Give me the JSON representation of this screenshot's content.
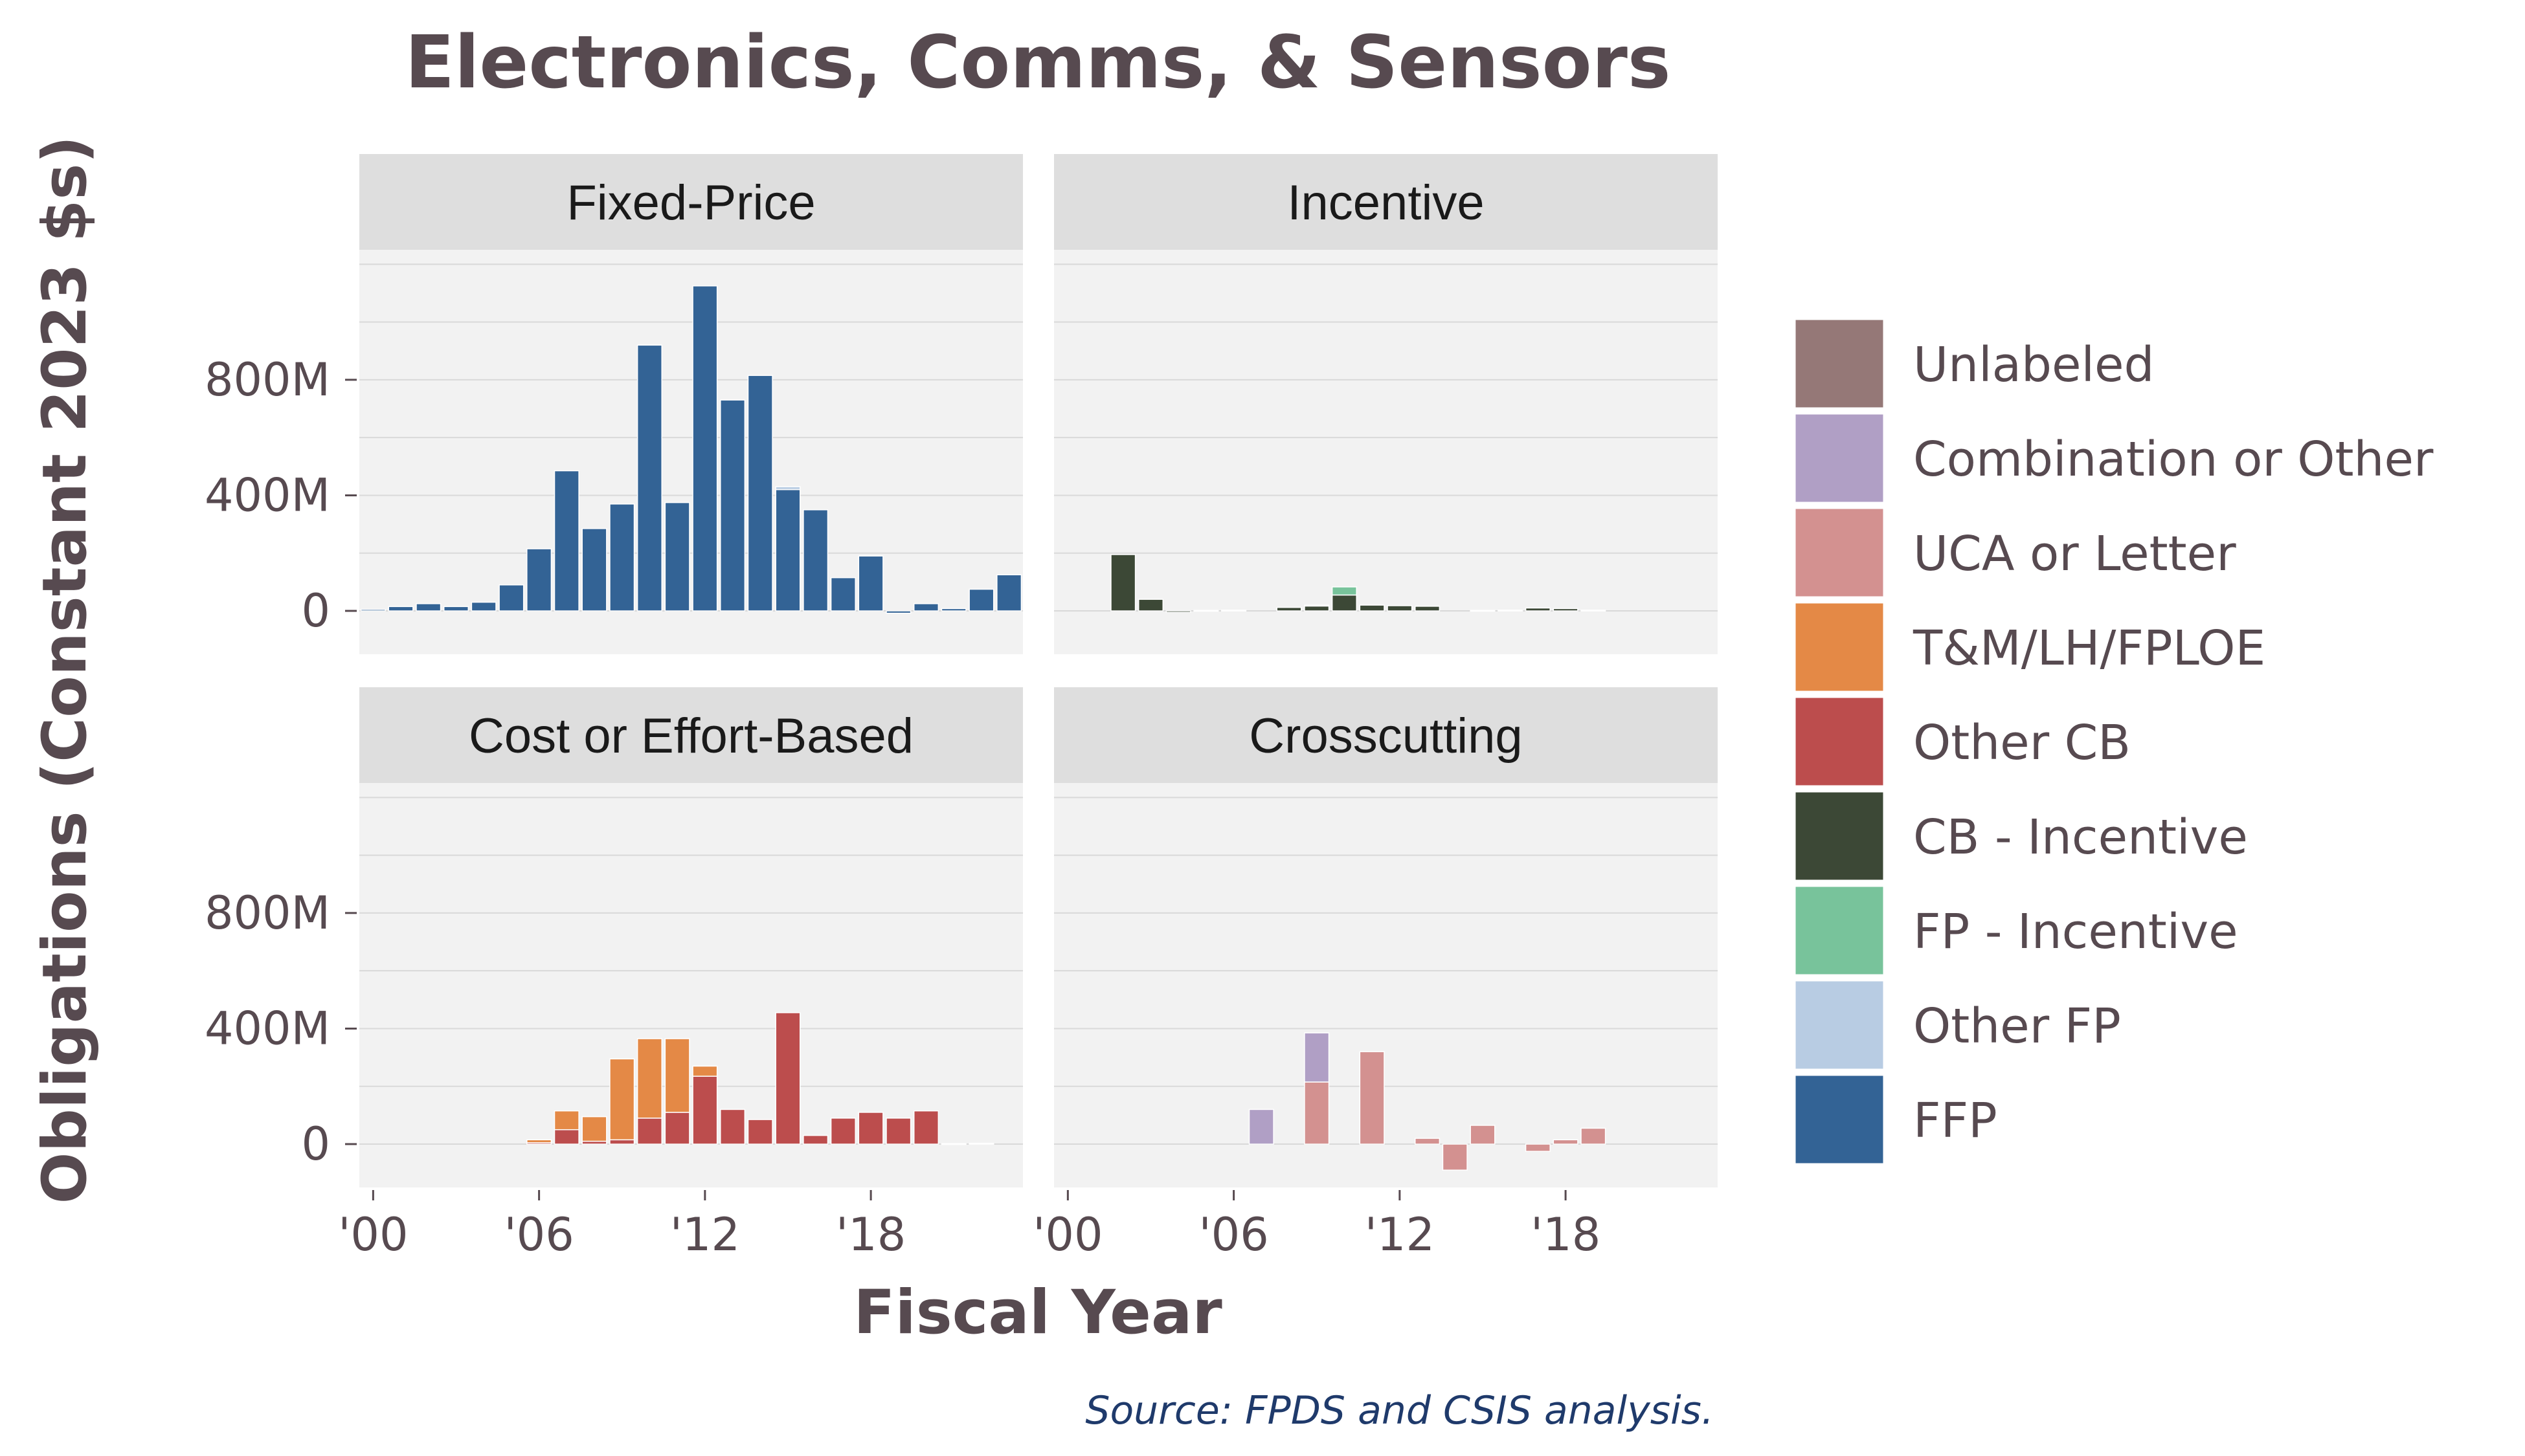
{
  "title": "Electronics, Comms, & Sensors",
  "xlabel": "Fiscal Year",
  "ylabel": "Obligations (Constant 2023 $s)",
  "caption": "Source: FPDS and CSIS analysis.",
  "colors": {
    "Unlabeled": "#957877",
    "Combination or Other": "#b09fc5",
    "UCA or Letter": "#d39190",
    "T&M/LH/FPLOE": "#e48946",
    "Other CB": "#bc4d4d",
    "CB - Incentive": "#3c4836",
    "FP - Incentive": "#78c39b",
    "Other FP": "#b8cce3",
    "FFP": "#336395"
  },
  "chart_data": {
    "type": "bar",
    "stacked": true,
    "faceted": true,
    "x_range": [
      1999.5,
      2023.5
    ],
    "ylim": [
      -150,
      1250
    ],
    "y_ticks": [
      0,
      400,
      800
    ],
    "y_tick_labels": [
      "0",
      "400M",
      "800M"
    ],
    "x_ticks": [
      2000,
      2006,
      2012,
      2018
    ],
    "x_tick_labels": [
      "'00",
      "'06",
      "'12",
      "'18"
    ],
    "grid": true,
    "legend_position": "right",
    "legend": [
      "Unlabeled",
      "Combination or Other",
      "UCA or Letter",
      "T&M/LH/FPLOE",
      "Other CB",
      "CB - Incentive",
      "FP - Incentive",
      "Other FP",
      "FFP"
    ],
    "years": [
      2000,
      2001,
      2002,
      2003,
      2004,
      2005,
      2006,
      2007,
      2008,
      2009,
      2010,
      2011,
      2012,
      2013,
      2014,
      2015,
      2016,
      2017,
      2018,
      2019,
      2020,
      2021,
      2022,
      2023
    ],
    "panels": [
      {
        "label": "Fixed-Price",
        "series": [
          {
            "name": "FFP",
            "values": [
              5,
              15,
              25,
              15,
              30,
              90,
              215,
              485,
              285,
              370,
              920,
              375,
              1125,
              730,
              815,
              420,
              350,
              115,
              190,
              -8,
              25,
              8,
              75,
              125
            ]
          },
          {
            "name": "Other FP",
            "values": [
              0,
              0,
              0,
              0,
              0,
              0,
              0,
              0,
              0,
              0,
              0,
              0,
              0,
              0,
              0,
              10,
              0,
              0,
              0,
              0,
              0,
              0,
              0,
              0
            ]
          }
        ]
      },
      {
        "label": "Incentive",
        "series": [
          {
            "name": "CB - Incentive",
            "values": [
              0,
              0,
              195,
              40,
              -5,
              2,
              3,
              0,
              12,
              18,
              55,
              20,
              18,
              16,
              0,
              2,
              3,
              10,
              8,
              3,
              0,
              0,
              0,
              0
            ]
          },
          {
            "name": "FP - Incentive",
            "values": [
              0,
              0,
              0,
              0,
              0,
              0,
              0,
              0,
              0,
              2,
              28,
              0,
              0,
              0,
              0,
              0,
              0,
              0,
              0,
              0,
              0,
              0,
              0,
              0
            ]
          }
        ]
      },
      {
        "label": "Cost or Effort-Based",
        "series": [
          {
            "name": "Other CB",
            "values": [
              0,
              0,
              0,
              0,
              0,
              0,
              5,
              50,
              10,
              15,
              90,
              110,
              235,
              120,
              85,
              455,
              30,
              90,
              110,
              90,
              115,
              2,
              3,
              0
            ]
          },
          {
            "name": "T&M/LH/FPLOE",
            "values": [
              0,
              0,
              0,
              0,
              0,
              0,
              10,
              65,
              85,
              280,
              275,
              255,
              35,
              0,
              0,
              0,
              0,
              0,
              0,
              0,
              0,
              0,
              0,
              0
            ]
          }
        ]
      },
      {
        "label": "Crosscutting",
        "series": [
          {
            "name": "UCA or Letter",
            "values": [
              0,
              0,
              0,
              0,
              0,
              0,
              0,
              0,
              0,
              215,
              0,
              320,
              0,
              20,
              -90,
              65,
              0,
              -25,
              15,
              55,
              0,
              0,
              0,
              0
            ]
          },
          {
            "name": "Combination or Other",
            "values": [
              0,
              0,
              0,
              0,
              0,
              0,
              0,
              120,
              0,
              170,
              0,
              0,
              0,
              0,
              0,
              0,
              0,
              0,
              0,
              0,
              0,
              0,
              0,
              0
            ]
          }
        ]
      }
    ]
  }
}
